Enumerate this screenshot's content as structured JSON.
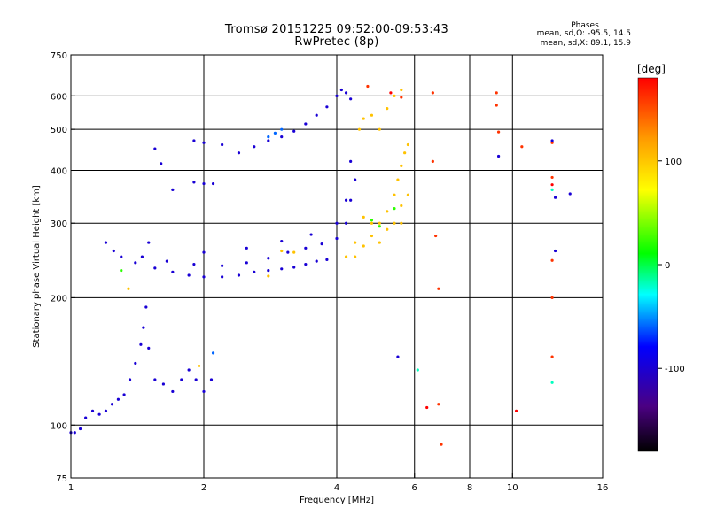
{
  "header": {
    "title_line1": "Tromsø 20151225 09:52:00-09:53:43",
    "title_line2": "RwPretec (8p)",
    "stats_title": "Phases",
    "stats_o": "mean, sd,O: -95.5, 14.5",
    "stats_x": "mean, sd,X: 89.1, 15.9"
  },
  "colorbar": {
    "label": "[deg]",
    "min": -180,
    "max": 180,
    "ticks": [
      {
        "value": 100,
        "label": "100"
      },
      {
        "value": 0,
        "label": "0"
      },
      {
        "value": -100,
        "label": "-100"
      }
    ]
  },
  "chart_data": {
    "type": "scatter",
    "xlabel": "Frequency [MHz]",
    "ylabel": "Stationary phase Virtual Height [km]",
    "xscale": "log",
    "yscale": "log",
    "xlim": [
      1,
      16
    ],
    "ylim": [
      75,
      750
    ],
    "grid": true,
    "color_by": "phase [deg]",
    "xticks": [
      {
        "value": 1,
        "label": "1"
      },
      {
        "value": 2,
        "label": "2"
      },
      {
        "value": 4,
        "label": "4"
      },
      {
        "value": 6,
        "label": "6"
      },
      {
        "value": 8,
        "label": "8"
      },
      {
        "value": 10,
        "label": "10"
      },
      {
        "value": 16,
        "label": "16"
      }
    ],
    "xgrid": [
      2,
      4,
      6,
      8,
      10
    ],
    "yticks": [
      {
        "value": 75,
        "label": "75"
      },
      {
        "value": 100,
        "label": "100"
      },
      {
        "value": 200,
        "label": "200"
      },
      {
        "value": 300,
        "label": "300"
      },
      {
        "value": 400,
        "label": "400"
      },
      {
        "value": 500,
        "label": "500"
      },
      {
        "value": 600,
        "label": "600"
      },
      {
        "value": 750,
        "label": "750"
      }
    ],
    "ygrid": [
      100,
      200,
      300,
      400,
      500,
      600
    ],
    "series": [
      {
        "points": [
          [
            1.0,
            96,
            -100
          ],
          [
            1.02,
            96,
            -100
          ],
          [
            1.05,
            98,
            -100
          ],
          [
            1.08,
            104,
            -100
          ],
          [
            1.12,
            108,
            -100
          ],
          [
            1.16,
            106,
            -100
          ],
          [
            1.2,
            108,
            -100
          ],
          [
            1.24,
            112,
            -100
          ],
          [
            1.28,
            115,
            -100
          ],
          [
            1.32,
            118,
            -100
          ],
          [
            1.36,
            128,
            -100
          ],
          [
            1.4,
            140,
            -100
          ],
          [
            1.44,
            155,
            -100
          ],
          [
            1.46,
            170,
            -100
          ],
          [
            1.48,
            190,
            -100
          ],
          [
            1.5,
            152,
            -100
          ],
          [
            1.55,
            128,
            -100
          ],
          [
            1.62,
            125,
            -100
          ],
          [
            1.7,
            120,
            -100
          ],
          [
            1.78,
            128,
            -100
          ],
          [
            1.85,
            135,
            -100
          ],
          [
            1.92,
            128,
            -100
          ],
          [
            2.0,
            120,
            -100
          ],
          [
            2.08,
            128,
            -100
          ],
          [
            2.1,
            148,
            -60
          ],
          [
            1.2,
            270,
            -100
          ],
          [
            1.3,
            250,
            -100
          ],
          [
            1.4,
            242,
            -100
          ],
          [
            1.55,
            235,
            -100
          ],
          [
            1.7,
            230,
            -100
          ],
          [
            1.85,
            226,
            -100
          ],
          [
            2.0,
            224,
            -100
          ],
          [
            2.2,
            224,
            -100
          ],
          [
            2.4,
            226,
            -100
          ],
          [
            2.6,
            230,
            -100
          ],
          [
            2.8,
            232,
            -100
          ],
          [
            3.0,
            234,
            -100
          ],
          [
            3.2,
            236,
            -100
          ],
          [
            3.4,
            240,
            -100
          ],
          [
            3.6,
            244,
            -100
          ],
          [
            3.8,
            246,
            -100
          ],
          [
            1.25,
            258,
            -100
          ],
          [
            1.45,
            250,
            -100
          ],
          [
            1.65,
            244,
            -100
          ],
          [
            1.9,
            240,
            -100
          ],
          [
            2.2,
            238,
            -100
          ],
          [
            2.5,
            242,
            -100
          ],
          [
            2.8,
            248,
            -100
          ],
          [
            3.1,
            256,
            -100
          ],
          [
            3.4,
            262,
            -100
          ],
          [
            3.7,
            268,
            -100
          ],
          [
            4.0,
            276,
            -100
          ],
          [
            4.2,
            300,
            -100
          ],
          [
            4.3,
            340,
            -100
          ],
          [
            4.4,
            380,
            -100
          ],
          [
            1.5,
            270,
            -100
          ],
          [
            2.0,
            256,
            -100
          ],
          [
            2.5,
            262,
            -100
          ],
          [
            3.0,
            272,
            -100
          ],
          [
            3.5,
            282,
            -100
          ],
          [
            4.0,
            300,
            -100
          ],
          [
            4.2,
            340,
            -100
          ],
          [
            4.3,
            420,
            -100
          ],
          [
            1.55,
            450,
            -100
          ],
          [
            1.9,
            470,
            -100
          ],
          [
            2.0,
            465,
            -100
          ],
          [
            2.2,
            460,
            -100
          ],
          [
            2.4,
            440,
            -100
          ],
          [
            2.6,
            455,
            -100
          ],
          [
            2.8,
            470,
            -100
          ],
          [
            3.0,
            480,
            -100
          ],
          [
            3.2,
            495,
            -100
          ],
          [
            3.4,
            515,
            -100
          ],
          [
            3.6,
            540,
            -100
          ],
          [
            3.8,
            565,
            -100
          ],
          [
            4.0,
            600,
            -100
          ],
          [
            4.1,
            620,
            -100
          ],
          [
            4.2,
            610,
            -100
          ],
          [
            4.3,
            590,
            -100
          ],
          [
            2.8,
            480,
            -60
          ],
          [
            2.9,
            490,
            -60
          ],
          [
            3.0,
            500,
            -60
          ],
          [
            1.9,
            375,
            -100
          ],
          [
            2.0,
            372,
            -100
          ],
          [
            2.1,
            372,
            -100
          ],
          [
            1.6,
            415,
            -100
          ],
          [
            1.7,
            360,
            -100
          ],
          [
            5.5,
            145,
            -100
          ],
          [
            9.3,
            432,
            -100
          ],
          [
            12.5,
            345,
            -100
          ],
          [
            13.5,
            352,
            -100
          ],
          [
            12.5,
            258,
            -100
          ],
          [
            4.4,
            270,
            100
          ],
          [
            4.6,
            265,
            100
          ],
          [
            4.8,
            280,
            100
          ],
          [
            5.0,
            300,
            100
          ],
          [
            5.2,
            320,
            100
          ],
          [
            5.4,
            350,
            100
          ],
          [
            5.5,
            380,
            100
          ],
          [
            5.6,
            410,
            100
          ],
          [
            5.7,
            440,
            100
          ],
          [
            5.8,
            460,
            100
          ],
          [
            5.6,
            330,
            100
          ],
          [
            5.8,
            350,
            100
          ],
          [
            5.4,
            300,
            100
          ],
          [
            5.2,
            290,
            100
          ],
          [
            5.0,
            270,
            100
          ],
          [
            4.8,
            300,
            100
          ],
          [
            4.6,
            310,
            100
          ],
          [
            5.6,
            300,
            100
          ],
          [
            4.5,
            500,
            100
          ],
          [
            4.6,
            530,
            100
          ],
          [
            4.8,
            540,
            100
          ],
          [
            5.0,
            500,
            100
          ],
          [
            5.2,
            560,
            100
          ],
          [
            5.4,
            600,
            100
          ],
          [
            5.6,
            620,
            100
          ],
          [
            4.4,
            250,
            100
          ],
          [
            4.2,
            250,
            100
          ],
          [
            4.8,
            305,
            20
          ],
          [
            5.0,
            295,
            20
          ],
          [
            5.4,
            325,
            20
          ],
          [
            1.3,
            232,
            20
          ],
          [
            1.35,
            210,
            100
          ],
          [
            3.0,
            258,
            100
          ],
          [
            3.2,
            256,
            100
          ],
          [
            2.8,
            225,
            100
          ],
          [
            1.95,
            138,
            100
          ],
          [
            5.6,
            595,
            160
          ],
          [
            6.6,
            610,
            160
          ],
          [
            6.6,
            420,
            160
          ],
          [
            6.7,
            280,
            160
          ],
          [
            6.8,
            210,
            160
          ],
          [
            6.8,
            112,
            160
          ],
          [
            6.9,
            90,
            160
          ],
          [
            9.2,
            610,
            160
          ],
          [
            9.2,
            570,
            160
          ],
          [
            9.3,
            493,
            160
          ],
          [
            10.5,
            455,
            160
          ],
          [
            12.3,
            465,
            160
          ],
          [
            12.3,
            385,
            160
          ],
          [
            12.3,
            145,
            160
          ],
          [
            12.3,
            200,
            160
          ],
          [
            12.3,
            245,
            160
          ],
          [
            12.3,
            370,
            180
          ],
          [
            6.4,
            110,
            180
          ],
          [
            10.2,
            108,
            180
          ],
          [
            5.3,
            610,
            180
          ],
          [
            4.7,
            632,
            160
          ],
          [
            12.3,
            360,
            -20
          ],
          [
            12.3,
            126,
            -20
          ],
          [
            12.3,
            470,
            -100
          ],
          [
            6.1,
            135,
            -20
          ]
        ]
      }
    ]
  }
}
